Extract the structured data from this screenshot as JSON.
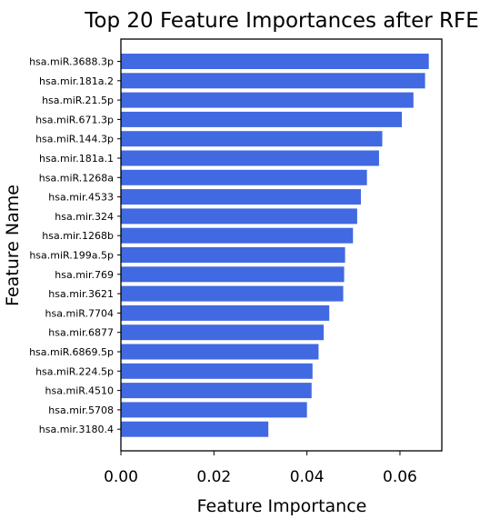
{
  "chart_data": {
    "type": "bar",
    "orientation": "horizontal",
    "title": "Top 20 Feature Importances after RFE",
    "xlabel": "Feature Importance",
    "ylabel": "Feature Name",
    "xlim": [
      0,
      0.069
    ],
    "xticks": [
      "0.00",
      "0.02",
      "0.04",
      "0.06"
    ],
    "xtick_values": [
      0,
      0.02,
      0.04,
      0.06
    ],
    "grid": false,
    "bar_color": "#4169E1",
    "categories": [
      "hsa.miR.3688.3p",
      "hsa.mir.181a.2",
      "hsa.miR.21.5p",
      "hsa.miR.671.3p",
      "hsa.miR.144.3p",
      "hsa.mir.181a.1",
      "hsa.miR.1268a",
      "hsa.mir.4533",
      "hsa.mir.324",
      "hsa.mir.1268b",
      "hsa.miR.199a.5p",
      "hsa.mir.769",
      "hsa.mir.3621",
      "hsa.miR.7704",
      "hsa.mir.6877",
      "hsa.miR.6869.5p",
      "hsa.miR.224.5p",
      "hsa.miR.4510",
      "hsa.mir.5708",
      "hsa.mir.3180.4"
    ],
    "values": [
      0.0662,
      0.0654,
      0.0629,
      0.0604,
      0.0562,
      0.0555,
      0.0529,
      0.0516,
      0.0508,
      0.0499,
      0.0482,
      0.048,
      0.0478,
      0.0448,
      0.0436,
      0.0425,
      0.0412,
      0.041,
      0.04,
      0.0317
    ]
  }
}
